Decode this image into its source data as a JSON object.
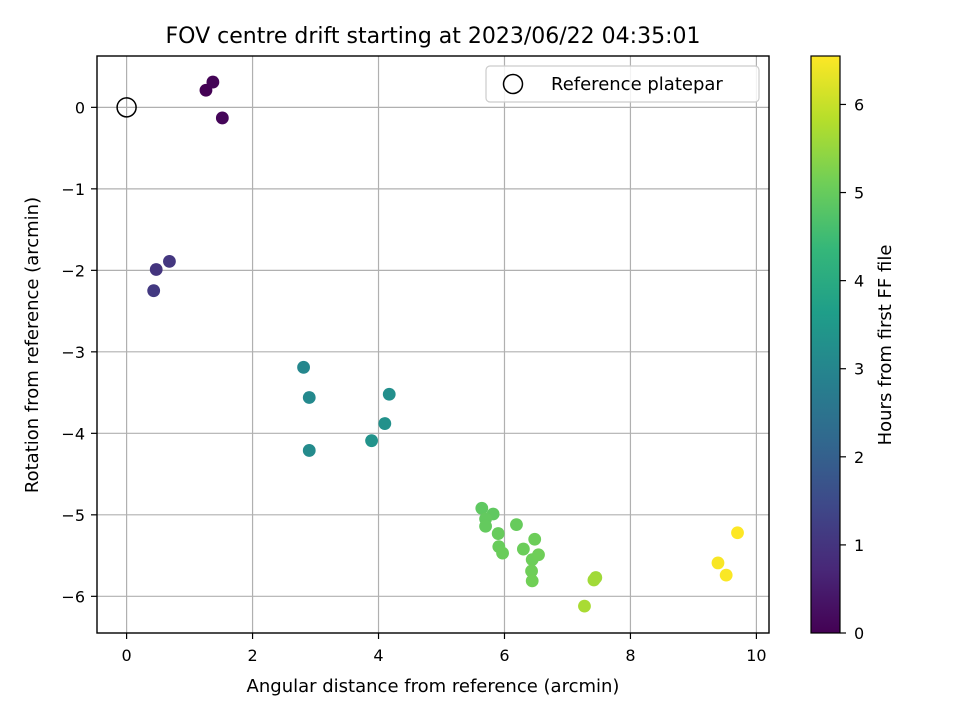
{
  "chart_data": {
    "type": "scatter",
    "title": "FOV centre drift starting at 2023/06/22 04:35:01",
    "xlabel": "Angular distance from reference (arcmin)",
    "ylabel": "Rotation from reference (arcmin)",
    "xlim": [
      -0.47,
      10.2
    ],
    "ylim": [
      -6.45,
      0.63
    ],
    "xticks": [
      0,
      2,
      4,
      6,
      8,
      10
    ],
    "yticks": [
      0,
      -1,
      -2,
      -3,
      -4,
      -5,
      -6
    ],
    "grid": true,
    "legend": {
      "position": "top-right",
      "entries": [
        {
          "label": "Reference platepar",
          "marker": "open-circle",
          "x": 0,
          "y": 0
        }
      ]
    },
    "colorbar": {
      "label": "Hours from first FF file",
      "min": 0,
      "max": 6.55,
      "ticks": [
        0,
        1,
        2,
        3,
        4,
        5,
        6
      ],
      "colormap": "viridis"
    },
    "colormap_stops": [
      "#440154",
      "#482878",
      "#3e4989",
      "#31688e",
      "#26828e",
      "#1f9e89",
      "#35b779",
      "#6ece58",
      "#b5de2b",
      "#fde725"
    ],
    "points": [
      {
        "x": 1.26,
        "y": 0.21,
        "hours": 0.0
      },
      {
        "x": 1.37,
        "y": 0.31,
        "hours": 0.05
      },
      {
        "x": 1.52,
        "y": -0.13,
        "hours": 0.1
      },
      {
        "x": 0.47,
        "y": -1.99,
        "hours": 1.0
      },
      {
        "x": 0.68,
        "y": -1.89,
        "hours": 1.05
      },
      {
        "x": 0.43,
        "y": -2.25,
        "hours": 1.1
      },
      {
        "x": 2.81,
        "y": -3.19,
        "hours": 3.05
      },
      {
        "x": 2.9,
        "y": -3.56,
        "hours": 3.1
      },
      {
        "x": 2.9,
        "y": -4.21,
        "hours": 3.15
      },
      {
        "x": 4.17,
        "y": -3.52,
        "hours": 3.25
      },
      {
        "x": 4.1,
        "y": -3.88,
        "hours": 3.3
      },
      {
        "x": 3.89,
        "y": -4.09,
        "hours": 3.35
      },
      {
        "x": 5.64,
        "y": -4.92,
        "hours": 4.9
      },
      {
        "x": 5.82,
        "y": -4.99,
        "hours": 4.92
      },
      {
        "x": 5.7,
        "y": -5.05,
        "hours": 4.95
      },
      {
        "x": 5.7,
        "y": -5.14,
        "hours": 4.97
      },
      {
        "x": 5.9,
        "y": -5.23,
        "hours": 5.0
      },
      {
        "x": 6.19,
        "y": -5.12,
        "hours": 5.0
      },
      {
        "x": 5.91,
        "y": -5.39,
        "hours": 5.02
      },
      {
        "x": 5.97,
        "y": -5.47,
        "hours": 5.04
      },
      {
        "x": 6.3,
        "y": -5.42,
        "hours": 5.05
      },
      {
        "x": 6.48,
        "y": -5.3,
        "hours": 5.07
      },
      {
        "x": 6.44,
        "y": -5.55,
        "hours": 5.08
      },
      {
        "x": 6.54,
        "y": -5.49,
        "hours": 5.1
      },
      {
        "x": 6.43,
        "y": -5.69,
        "hours": 5.1
      },
      {
        "x": 6.44,
        "y": -5.81,
        "hours": 5.12
      },
      {
        "x": 7.45,
        "y": -5.77,
        "hours": 5.6
      },
      {
        "x": 7.42,
        "y": -5.8,
        "hours": 5.62
      },
      {
        "x": 7.27,
        "y": -6.12,
        "hours": 5.7
      },
      {
        "x": 9.39,
        "y": -5.59,
        "hours": 6.5
      },
      {
        "x": 9.52,
        "y": -5.74,
        "hours": 6.52
      },
      {
        "x": 9.7,
        "y": -5.22,
        "hours": 6.55
      }
    ]
  }
}
